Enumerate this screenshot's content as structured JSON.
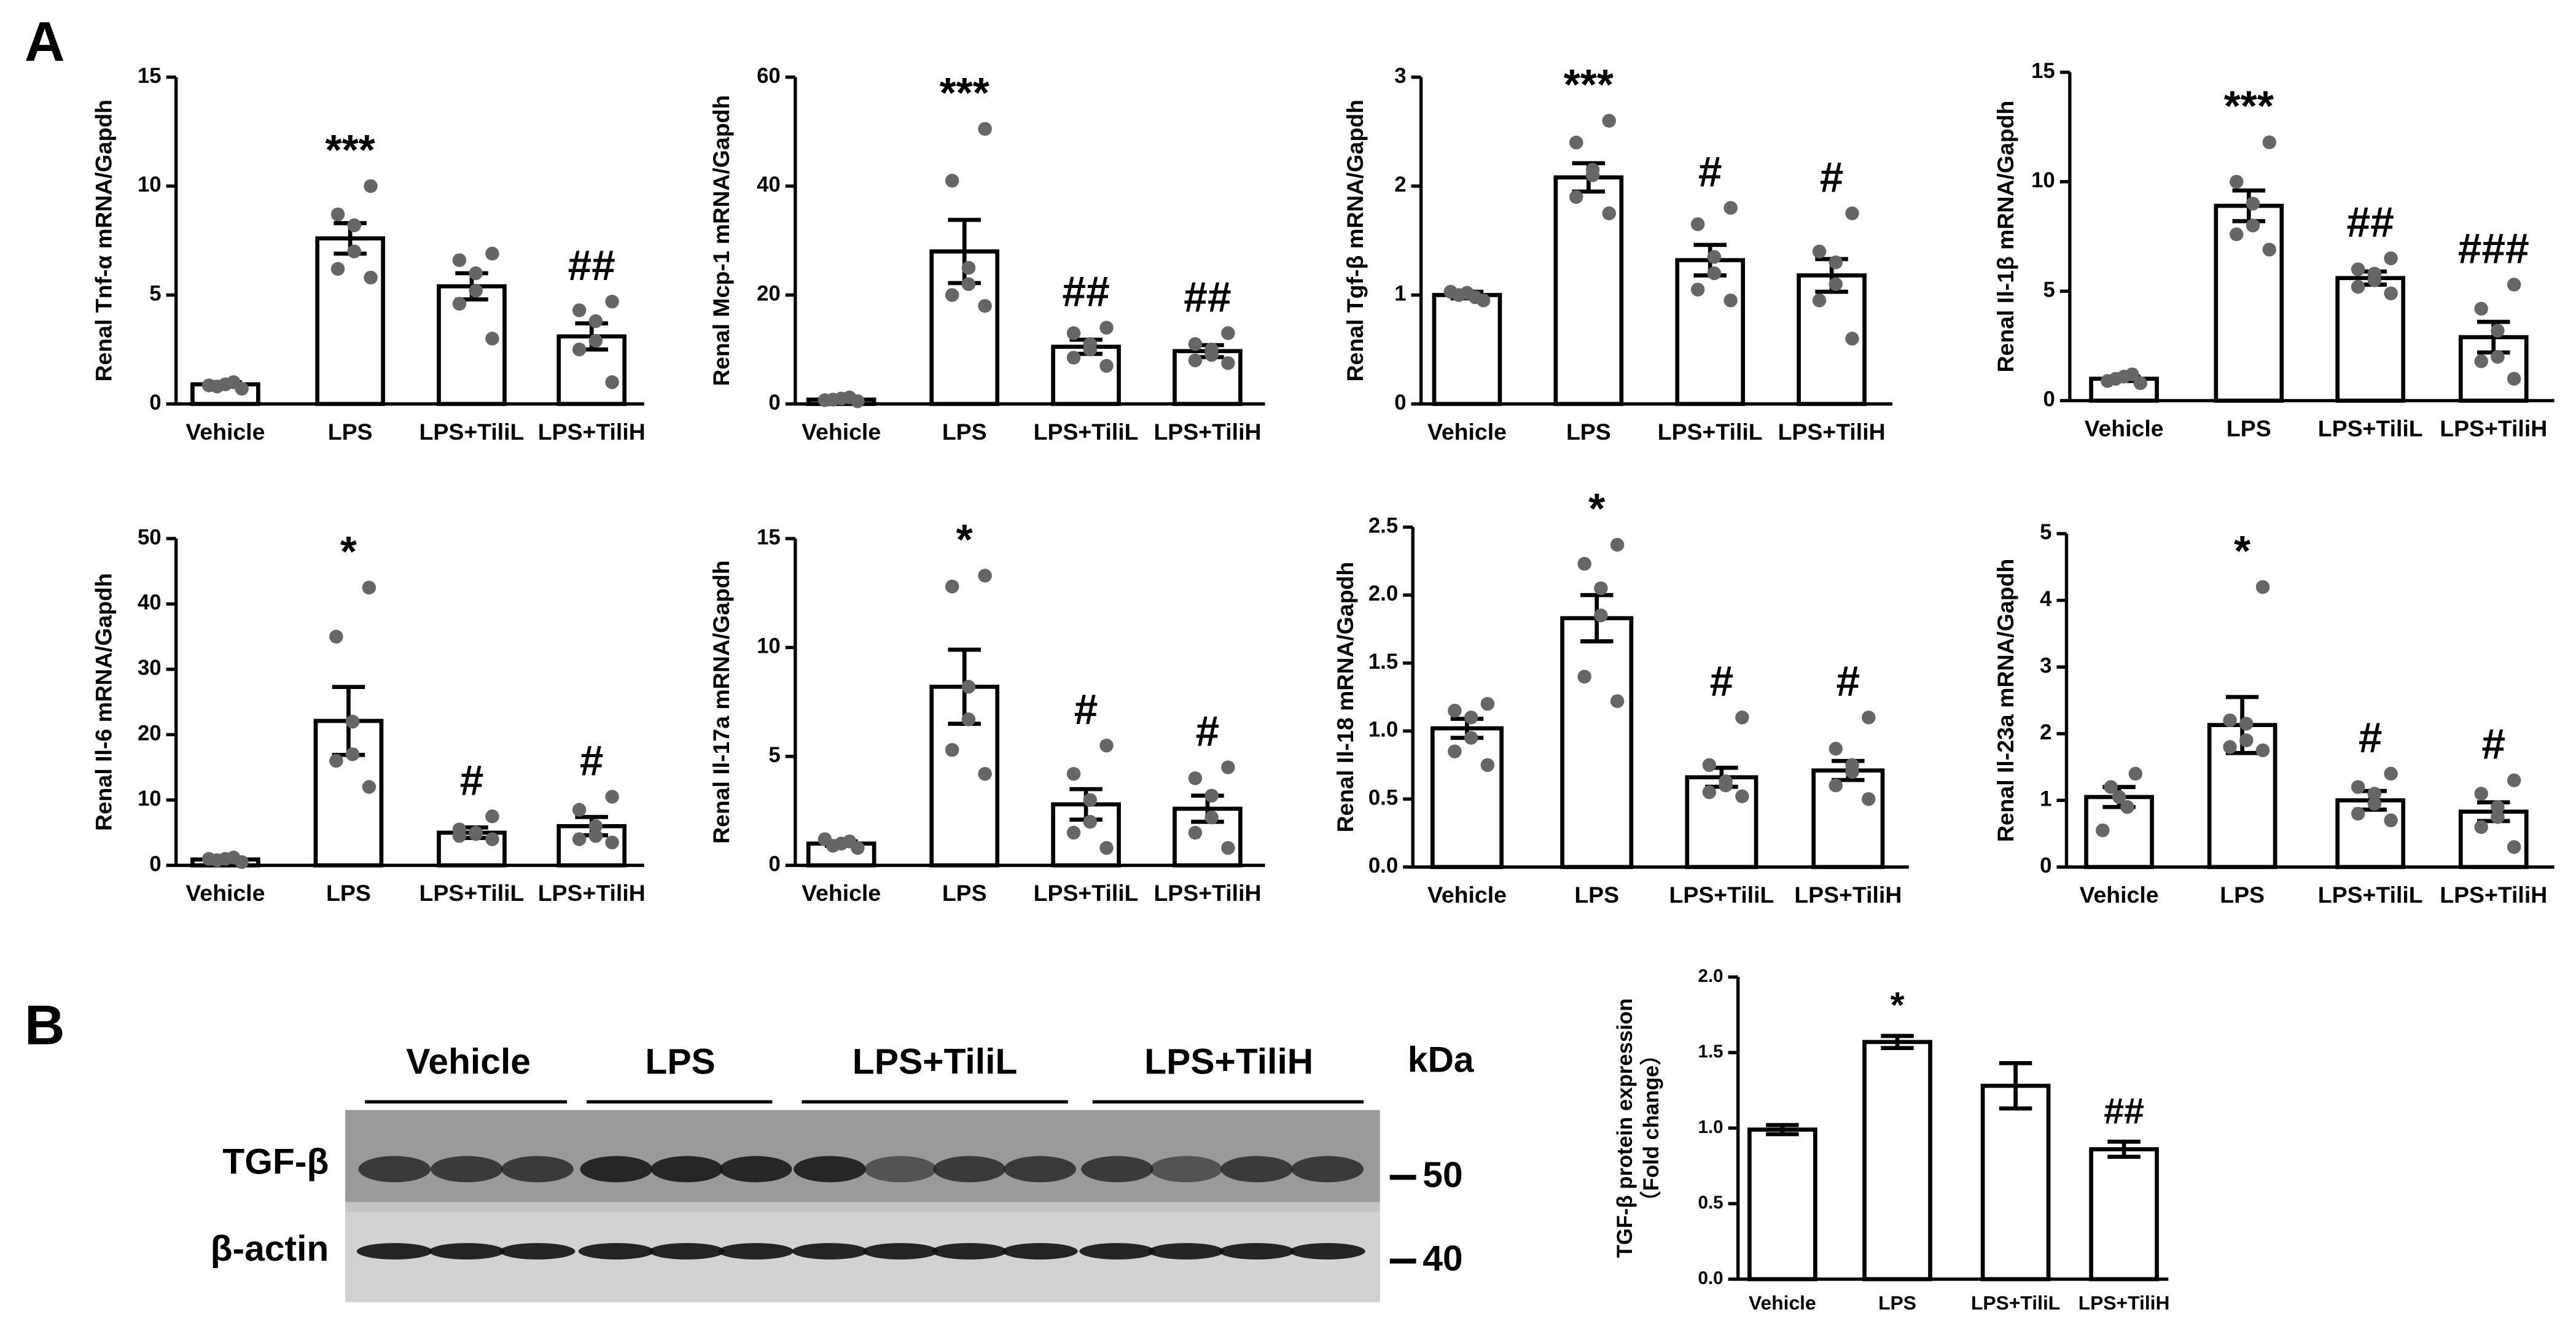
{
  "panel_labels": [
    "A",
    "B"
  ],
  "blot": {
    "lanes": [
      "Vehicle",
      "LPS",
      "LPS+TiliL",
      "LPS+TiliH"
    ],
    "unit": "kDa",
    "rows": [
      "TGF-β",
      "β-actin"
    ],
    "markers": [
      50,
      40
    ]
  },
  "chart_data": [
    {
      "type": "bar",
      "y_label": "Renal Tnf-α mRNA/Gapdh",
      "categories": [
        "Vehicle",
        "LPS",
        "LPS+TiliL",
        "LPS+TiliH"
      ],
      "values": [
        0.9,
        7.6,
        5.4,
        3.1
      ],
      "errors": [
        0.1,
        0.7,
        0.6,
        0.6
      ],
      "points": [
        [
          0.7,
          0.8,
          0.9,
          1.0,
          0.85
        ],
        [
          10.0,
          8.7,
          8.2,
          7.0,
          6.2,
          5.8
        ],
        [
          6.9,
          6.6,
          6.0,
          5.2,
          4.6,
          3.0
        ],
        [
          4.7,
          4.3,
          3.8,
          2.9,
          2.5,
          1.0
        ]
      ],
      "annotations": [
        null,
        "***",
        null,
        "##"
      ],
      "ylim": [
        0,
        15
      ],
      "yticks": [
        0,
        5,
        10,
        15
      ]
    },
    {
      "type": "bar",
      "y_label": "Renal Mcp-1 mRNA/Gapdh",
      "categories": [
        "Vehicle",
        "LPS",
        "LPS+TiliL",
        "LPS+TiliH"
      ],
      "values": [
        0.8,
        28,
        10.5,
        9.7
      ],
      "errors": [
        0.2,
        5.8,
        1.3,
        1.1
      ],
      "points": [
        [
          0.5,
          0.8,
          1.0,
          1.2,
          0.7
        ],
        [
          50.5,
          41,
          25,
          22,
          20,
          18
        ],
        [
          14,
          13,
          11,
          10,
          8.5,
          7
        ],
        [
          13,
          11,
          10,
          9,
          8,
          7.5
        ]
      ],
      "annotations": [
        null,
        "***",
        "##",
        "##"
      ],
      "ylim": [
        0,
        60
      ],
      "yticks": [
        0,
        20,
        40,
        60
      ]
    },
    {
      "type": "bar",
      "y_label": "Renal Tgf-β mRNA/Gapdh",
      "categories": [
        "Vehicle",
        "LPS",
        "LPS+TiliL",
        "LPS+TiliH"
      ],
      "values": [
        1.0,
        2.08,
        1.32,
        1.18
      ],
      "errors": [
        0.03,
        0.13,
        0.14,
        0.15
      ],
      "points": [
        [
          0.95,
          1.0,
          1.02,
          0.98,
          1.03
        ],
        [
          2.6,
          2.4,
          2.15,
          2.1,
          1.9,
          1.75
        ],
        [
          1.8,
          1.65,
          1.35,
          1.2,
          1.05,
          0.95
        ],
        [
          1.75,
          1.4,
          1.3,
          1.1,
          0.95,
          0.6
        ]
      ],
      "annotations": [
        null,
        "***",
        "#",
        "#"
      ],
      "ylim": [
        0,
        3
      ],
      "yticks": [
        0,
        1,
        2,
        3
      ]
    },
    {
      "type": "bar",
      "y_label": "Renal Il-1β mRNA/Gapdh",
      "categories": [
        "Vehicle",
        "LPS",
        "LPS+TiliL",
        "LPS+TiliH"
      ],
      "values": [
        1.0,
        8.9,
        5.6,
        2.9
      ],
      "errors": [
        0.1,
        0.7,
        0.3,
        0.7
      ],
      "points": [
        [
          0.8,
          1.0,
          1.1,
          1.2,
          0.9
        ],
        [
          11.8,
          10.0,
          9.0,
          8.0,
          7.6,
          6.9
        ],
        [
          6.5,
          6.0,
          5.8,
          5.5,
          5.2,
          4.9
        ],
        [
          5.3,
          4.2,
          3.2,
          2.0,
          1.8,
          1.0
        ]
      ],
      "annotations": [
        null,
        "***",
        "##",
        "###"
      ],
      "ylim": [
        0,
        15
      ],
      "yticks": [
        0,
        5,
        10,
        15
      ]
    },
    {
      "type": "bar",
      "y_label": "Renal Il-6 mRNA/Gapdh",
      "categories": [
        "Vehicle",
        "LPS",
        "LPS+TiliL",
        "LPS+TiliH"
      ],
      "values": [
        0.9,
        22.1,
        5.0,
        6.0
      ],
      "errors": [
        0.2,
        5.2,
        0.8,
        1.4
      ],
      "points": [
        [
          0.5,
          0.8,
          1.0,
          1.2,
          1.0
        ],
        [
          42.5,
          35,
          22,
          17,
          16,
          12
        ],
        [
          7.5,
          5.5,
          5,
          4.8,
          4.5,
          4.0
        ],
        [
          10.5,
          8.5,
          6,
          4.5,
          4,
          3.5
        ]
      ],
      "annotations": [
        null,
        "*",
        "#",
        "#"
      ],
      "ylim": [
        0,
        50
      ],
      "yticks": [
        0,
        10,
        20,
        30,
        40,
        50
      ]
    },
    {
      "type": "bar",
      "y_label": "Renal Il-17a mRNA/Gapdh",
      "categories": [
        "Vehicle",
        "LPS",
        "LPS+TiliL",
        "LPS+TiliH"
      ],
      "values": [
        1.0,
        8.2,
        2.8,
        2.6
      ],
      "errors": [
        0.1,
        1.7,
        0.7,
        0.6
      ],
      "points": [
        [
          0.8,
          0.9,
          1.0,
          1.1,
          1.2
        ],
        [
          13.3,
          12.8,
          8.2,
          6.7,
          5.3,
          4.2
        ],
        [
          5.5,
          4.2,
          3.0,
          2.0,
          1.5,
          0.8
        ],
        [
          4.5,
          4.0,
          3.2,
          2.2,
          1.5,
          0.8
        ]
      ],
      "annotations": [
        null,
        "*",
        "#",
        "#"
      ],
      "ylim": [
        0,
        15
      ],
      "yticks": [
        0,
        5,
        10,
        15
      ]
    },
    {
      "type": "bar",
      "y_label": "Renal Il-18 mRNA/Gapdh",
      "categories": [
        "Vehicle",
        "LPS",
        "LPS+TiliL",
        "LPS+TiliH"
      ],
      "values": [
        1.02,
        1.83,
        0.66,
        0.71
      ],
      "errors": [
        0.07,
        0.17,
        0.07,
        0.07
      ],
      "points": [
        [
          1.2,
          1.15,
          1.1,
          0.95,
          0.85,
          0.75
        ],
        [
          2.37,
          2.23,
          2.05,
          1.85,
          1.4,
          1.22
        ],
        [
          1.1,
          0.75,
          0.63,
          0.6,
          0.55,
          0.52
        ],
        [
          1.1,
          0.87,
          0.75,
          0.7,
          0.6,
          0.5
        ]
      ],
      "annotations": [
        null,
        "*",
        "#",
        "#"
      ],
      "ylim": [
        0,
        2.5
      ],
      "yticks": [
        {
          "value": 0,
          "label": "0.0"
        },
        0.5,
        {
          "value": 1,
          "label": "1.0"
        },
        1.5,
        {
          "value": 2,
          "label": "2.0"
        },
        2.5
      ]
    },
    {
      "type": "bar",
      "y_label": "Renal Il-23a mRNA/Gapdh",
      "categories": [
        "Vehicle",
        "LPS",
        "LPS+TiliL",
        "LPS+TiliH"
      ],
      "values": [
        1.05,
        2.13,
        1.0,
        0.83
      ],
      "errors": [
        0.15,
        0.42,
        0.14,
        0.14
      ],
      "points": [
        [
          1.4,
          1.2,
          1.05,
          0.9,
          0.55
        ],
        [
          4.2,
          2.2,
          2.15,
          1.9,
          1.8,
          1.75
        ],
        [
          1.4,
          1.2,
          1.1,
          0.95,
          0.8,
          0.7
        ],
        [
          1.3,
          1.1,
          0.9,
          0.75,
          0.6,
          0.3
        ]
      ],
      "annotations": [
        null,
        "*",
        "#",
        "#"
      ],
      "ylim": [
        0,
        5
      ],
      "yticks": [
        0,
        1,
        2,
        3,
        4,
        5
      ]
    },
    {
      "type": "bar",
      "y_label": [
        "TGF-β protein expression",
        "（Fold change）"
      ],
      "categories": [
        "Vehicle",
        "LPS",
        "LPS+TiliL",
        "LPS+TiliH"
      ],
      "values": [
        0.99,
        1.57,
        1.28,
        0.86
      ],
      "errors": [
        0.03,
        0.04,
        0.15,
        0.05
      ],
      "annotations": [
        null,
        "*",
        null,
        "##"
      ],
      "ylim": [
        0,
        2
      ],
      "yticks": [
        {
          "value": 0,
          "label": "0.0"
        },
        0.5,
        {
          "value": 1,
          "label": "1.0"
        },
        1.5,
        {
          "value": 2,
          "label": "2.0"
        }
      ]
    }
  ]
}
